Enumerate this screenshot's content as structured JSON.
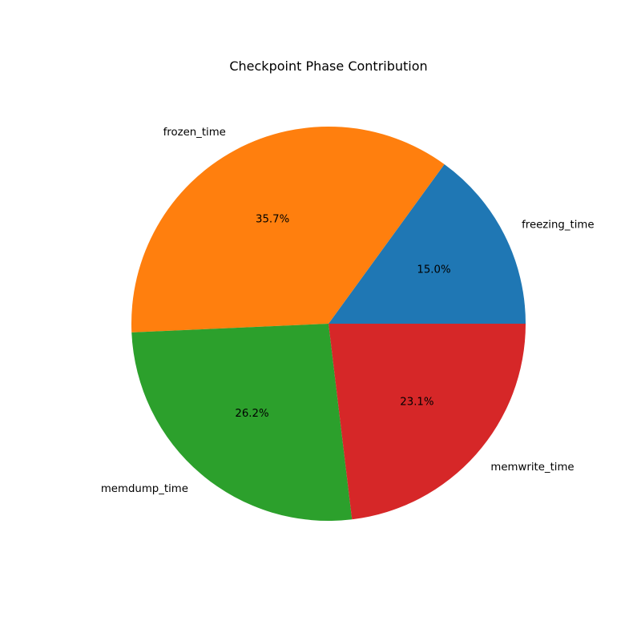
{
  "chart_data": {
    "type": "pie",
    "title": "Checkpoint Phase Contribution",
    "slices": [
      {
        "label": "freezing_time",
        "value": 15.0,
        "percent_label": "15.0%",
        "color": "#1f77b4"
      },
      {
        "label": "frozen_time",
        "value": 35.7,
        "percent_label": "35.7%",
        "color": "#ff7f0e"
      },
      {
        "label": "memdump_time",
        "value": 26.2,
        "percent_label": "26.2%",
        "color": "#2ca02c"
      },
      {
        "label": "memwrite_time",
        "value": 23.1,
        "percent_label": "23.1%",
        "color": "#d62728"
      }
    ],
    "start_angle_deg": 0,
    "direction": "counterclockwise"
  }
}
